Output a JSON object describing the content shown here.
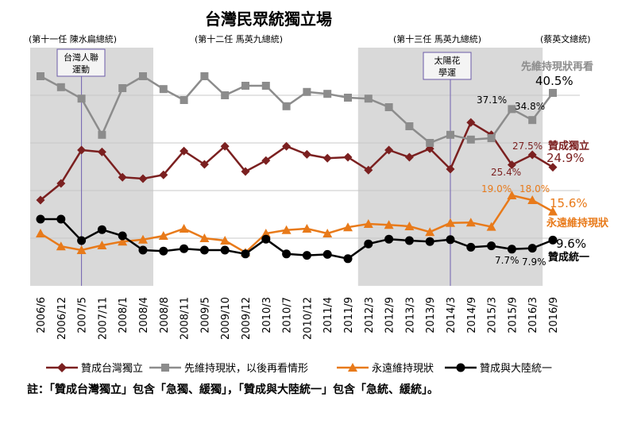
{
  "chart_data": {
    "type": "line",
    "title": "台灣民眾統獨立場",
    "categories": [
      "2006/6",
      "2006/12",
      "2007/5",
      "2007/11",
      "2008/1",
      "2008/4",
      "2008/8",
      "2008/11",
      "2009/5",
      "2009/10",
      "2009/12",
      "2010/3",
      "2010/7",
      "2010/12",
      "2011/4",
      "2011/9",
      "2012/3",
      "2012/9",
      "2013/3",
      "2013/9",
      "2014/3",
      "2014/9",
      "2015/3",
      "2015/9",
      "2016/3",
      "2016/9"
    ],
    "ylim": [
      0,
      50
    ],
    "series": [
      {
        "name": "贊成台灣獨立",
        "color": "#7b2020",
        "marker": "diamond",
        "values": [
          18.0,
          21.5,
          28.5,
          28.1,
          22.8,
          22.5,
          23.3,
          28.3,
          25.5,
          29.3,
          24.0,
          26.3,
          29.3,
          27.6,
          26.8,
          27.0,
          24.3,
          28.5,
          27.0,
          28.8,
          24.5,
          34.3,
          31.7,
          25.4,
          27.5,
          24.9
        ]
      },
      {
        "name": "先維持現狀，以後再看情形",
        "color": "#8c8c8c",
        "marker": "square",
        "values": [
          44.0,
          41.7,
          39.3,
          31.7,
          41.5,
          44.0,
          41.3,
          39.0,
          44.0,
          40.0,
          42.0,
          42.0,
          37.7,
          40.7,
          40.3,
          39.5,
          39.3,
          37.5,
          33.5,
          30.0,
          31.7,
          30.7,
          31.0,
          37.1,
          34.8,
          40.5
        ]
      },
      {
        "name": "永遠維持現狀",
        "color": "#e87a1a",
        "marker": "triangle",
        "values": [
          11.0,
          8.3,
          7.5,
          8.5,
          9.3,
          9.7,
          10.5,
          12.0,
          10.0,
          9.5,
          7.0,
          11.0,
          11.7,
          12.0,
          11.0,
          12.3,
          13.0,
          12.8,
          12.5,
          11.3,
          13.2,
          13.3,
          12.4,
          19.0,
          18.0,
          15.6
        ]
      },
      {
        "name": "贊成與大陸統一",
        "color": "#000000",
        "marker": "circle",
        "values": [
          14.0,
          14.0,
          9.5,
          11.8,
          10.5,
          7.5,
          7.3,
          7.8,
          7.5,
          7.5,
          6.7,
          9.8,
          6.7,
          6.4,
          6.6,
          5.7,
          8.8,
          9.8,
          9.5,
          9.3,
          9.7,
          8.1,
          8.4,
          7.7,
          7.9,
          9.6
        ]
      }
    ],
    "shaded_ranges": [
      {
        "from": "2006/6",
        "to": "2008/4",
        "label": "(第十一任 陳水扁總統)"
      },
      {
        "from": "2012/3",
        "to": "2016/3",
        "label": "(第十三任 馬英九總統)"
      }
    ],
    "era_labels": {
      "ma_first": "(第十二任 馬英九總統)",
      "tsai": "(蔡英文總統)"
    },
    "events": [
      {
        "at": "2007/5",
        "line1": "台灣人聯",
        "line2": "運動"
      },
      {
        "at": "2014/3",
        "line1": "太陽花",
        "line2": "學運"
      }
    ],
    "annotations": {
      "status_quo_label": "先維持現狀再看",
      "status_quo_last": "40.5%",
      "status_quo_2015_9": "37.1%",
      "status_quo_2016_3": "34.8%",
      "independence_label": "贊成獨立",
      "independence_last": "24.9%",
      "independence_2015_9": "25.4%",
      "independence_2016_3": "27.5%",
      "forever_label": "永遠維持現狀",
      "forever_last": "15.6%",
      "forever_2015_9": "19.0%",
      "forever_2016_3": "18.0%",
      "unification_label": "贊成統一",
      "unification_last": "9.6%",
      "unification_2015_9": "7.7%",
      "unification_2016_3": "7.9%"
    },
    "legend_position": "bottom",
    "grid": true
  },
  "note": {
    "prefix": "註：",
    "q1": "「贊成台灣獨立」",
    "mid1": "包含",
    "a1": "「急獨、緩獨」",
    "comma": "，",
    "q2": "「贊成與大陸統一」",
    "mid2": "包含",
    "a2": "「急統、緩統」",
    "end": "。"
  },
  "colors": {
    "shade": "#d9d9d9",
    "grid": "#c8c8c8",
    "event_line": "#7060b0",
    "event_box": "#6a5aa8"
  }
}
